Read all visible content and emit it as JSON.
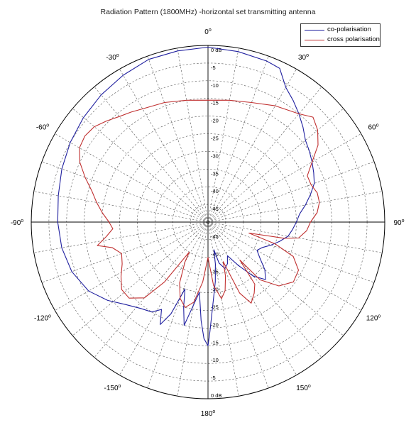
{
  "chart_data": {
    "type": "polar-line",
    "title": "Radiation Pattern (1800MHz) -horizontal set transmitting antenna",
    "angle_ticks": [
      {
        "angle": 0,
        "label": "0"
      },
      {
        "angle": 30,
        "label": "30"
      },
      {
        "angle": 60,
        "label": "60"
      },
      {
        "angle": 90,
        "label": "90"
      },
      {
        "angle": 120,
        "label": "120"
      },
      {
        "angle": 150,
        "label": "150"
      },
      {
        "angle": 180,
        "label": "180"
      },
      {
        "angle": -150,
        "label": "-150"
      },
      {
        "angle": -120,
        "label": "-120"
      },
      {
        "angle": -90,
        "label": "-90"
      },
      {
        "angle": -60,
        "label": "-60"
      },
      {
        "angle": -30,
        "label": "-30"
      }
    ],
    "angle_label_suffix": "o",
    "radial_ticks": [
      "0 dB",
      "-5",
      "-10",
      "-15",
      "-20",
      "-25",
      "-30",
      "-35",
      "-40",
      "-45"
    ],
    "radial_range_db": [
      -50,
      0
    ],
    "grid": true,
    "legend_position": "top-right",
    "series": [
      {
        "name": "co-polarisation",
        "color": "#1f1f9f",
        "points": [
          [
            0,
            -0.5
          ],
          [
            10,
            -1
          ],
          [
            20,
            -1.5
          ],
          [
            25,
            -2
          ],
          [
            30,
            -6
          ],
          [
            35,
            -8
          ],
          [
            40,
            -10
          ],
          [
            45,
            -12
          ],
          [
            50,
            -14
          ],
          [
            55,
            -15
          ],
          [
            60,
            -16
          ],
          [
            65,
            -17
          ],
          [
            70,
            -18
          ],
          [
            75,
            -20
          ],
          [
            80,
            -22
          ],
          [
            85,
            -24
          ],
          [
            90,
            -25
          ],
          [
            95,
            -26
          ],
          [
            100,
            -27
          ],
          [
            105,
            -29
          ],
          [
            110,
            -31
          ],
          [
            115,
            -33
          ],
          [
            120,
            -34
          ],
          [
            125,
            -32
          ],
          [
            130,
            -29
          ],
          [
            135,
            -27
          ],
          [
            140,
            -30
          ],
          [
            145,
            -35
          ],
          [
            150,
            -39
          ],
          [
            155,
            -37
          ],
          [
            160,
            -36
          ],
          [
            165,
            -38
          ],
          [
            168,
            -42
          ],
          [
            170,
            -38
          ],
          [
            173,
            -33
          ],
          [
            176,
            -28
          ],
          [
            179,
            -19
          ],
          [
            180,
            -15
          ],
          [
            182,
            -17
          ],
          [
            184,
            -22
          ],
          [
            187,
            -30
          ],
          [
            190,
            -26
          ],
          [
            193,
            -20
          ],
          [
            196,
            -25
          ],
          [
            199,
            -30
          ],
          [
            202,
            -22
          ],
          [
            205,
            -18
          ],
          [
            208,
            -22
          ],
          [
            212,
            -20
          ],
          [
            218,
            -19
          ],
          [
            225,
            -17
          ],
          [
            232,
            -14
          ],
          [
            240,
            -11
          ],
          [
            250,
            -9
          ],
          [
            260,
            -8
          ],
          [
            270,
            -7.5
          ],
          [
            280,
            -7
          ],
          [
            290,
            -6
          ],
          [
            300,
            -5
          ],
          [
            310,
            -4
          ],
          [
            320,
            -3
          ],
          [
            330,
            -2
          ],
          [
            340,
            -1
          ],
          [
            350,
            -0.8
          ],
          [
            360,
            -0.5
          ]
        ]
      },
      {
        "name": "cross polarisation",
        "color": "#c03030",
        "points": [
          [
            0,
            -15.5
          ],
          [
            10,
            -15
          ],
          [
            20,
            -14
          ],
          [
            30,
            -12
          ],
          [
            40,
            -10
          ],
          [
            45,
            -8
          ],
          [
            50,
            -9.5
          ],
          [
            55,
            -12
          ],
          [
            60,
            -16
          ],
          [
            65,
            -19
          ],
          [
            70,
            -19
          ],
          [
            75,
            -18
          ],
          [
            80,
            -18
          ],
          [
            85,
            -19
          ],
          [
            90,
            -21
          ],
          [
            95,
            -22
          ],
          [
            100,
            -24
          ],
          [
            102,
            -28
          ],
          [
            105,
            -38
          ],
          [
            108,
            -30
          ],
          [
            112,
            -24
          ],
          [
            118,
            -21
          ],
          [
            125,
            -20.5
          ],
          [
            132,
            -23
          ],
          [
            138,
            -28
          ],
          [
            140,
            -36
          ],
          [
            143,
            -28
          ],
          [
            147,
            -26
          ],
          [
            152,
            -24
          ],
          [
            156,
            -28
          ],
          [
            159,
            -38
          ],
          [
            162,
            -34
          ],
          [
            166,
            -30
          ],
          [
            170,
            -28
          ],
          [
            175,
            -32
          ],
          [
            180,
            -40
          ],
          [
            185,
            -33
          ],
          [
            190,
            -27
          ],
          [
            195,
            -25
          ],
          [
            200,
            -27
          ],
          [
            205,
            -31
          ],
          [
            210,
            -37
          ],
          [
            212,
            -40
          ],
          [
            216,
            -29
          ],
          [
            220,
            -22
          ],
          [
            226,
            -19
          ],
          [
            232,
            -19
          ],
          [
            238,
            -21
          ],
          [
            244,
            -23
          ],
          [
            250,
            -24
          ],
          [
            255,
            -22
          ],
          [
            258,
            -18
          ],
          [
            262,
            -21
          ],
          [
            266,
            -23
          ],
          [
            270,
            -22
          ],
          [
            275,
            -20
          ],
          [
            280,
            -18
          ],
          [
            285,
            -16
          ],
          [
            290,
            -13
          ],
          [
            295,
            -10
          ],
          [
            300,
            -8
          ],
          [
            305,
            -7.5
          ],
          [
            310,
            -8
          ],
          [
            315,
            -9.5
          ],
          [
            320,
            -11
          ],
          [
            325,
            -12
          ],
          [
            330,
            -13
          ],
          [
            340,
            -14
          ],
          [
            350,
            -15
          ],
          [
            360,
            -15.5
          ]
        ]
      }
    ]
  }
}
